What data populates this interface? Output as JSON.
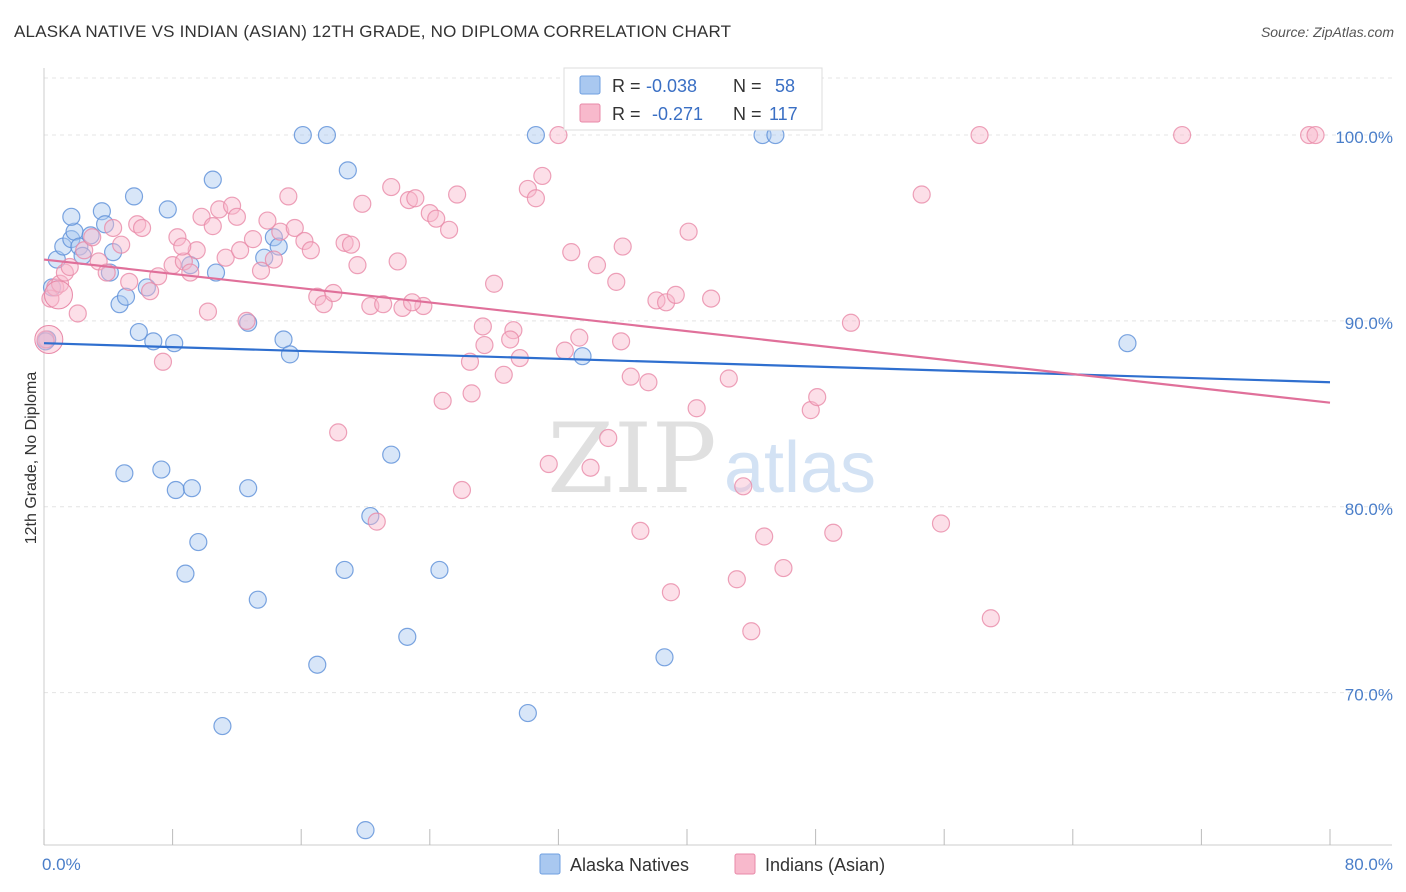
{
  "title": "ALASKA NATIVE VS INDIAN (ASIAN) 12TH GRADE, NO DIPLOMA CORRELATION CHART",
  "source": "Source: ZipAtlas.com",
  "watermark": {
    "zip": "ZIP",
    "atlas": "atlas"
  },
  "legend": {
    "rows": [
      {
        "r_label": "R =",
        "r_value": "-0.038",
        "n_label": "N =",
        "n_value": "58",
        "color": "#a9c8f0",
        "stroke": "#6f9fe0"
      },
      {
        "r_label": "R =",
        "r_value": "-0.271",
        "n_label": "N =",
        "n_value": "117",
        "color": "#f8b9cc",
        "stroke": "#e889a8"
      }
    ]
  },
  "bottom_legend": [
    "Alaska Natives",
    "Indians (Asian)"
  ],
  "chart_data": {
    "type": "scatter",
    "ylabel": "12th Grade, No Diploma",
    "xlabel": "",
    "xlim": [
      0,
      80
    ],
    "ylim": [
      61.8,
      103.5
    ],
    "x_tick_labels": [
      {
        "value": 0,
        "label": "0.0%"
      },
      {
        "value": 80,
        "label": "80.0%"
      }
    ],
    "y_tick_labels": [
      {
        "value": 100,
        "label": "100.0%"
      },
      {
        "value": 90,
        "label": "90.0%"
      },
      {
        "value": 80,
        "label": "80.0%"
      },
      {
        "value": 70,
        "label": "70.0%"
      }
    ],
    "grid": true,
    "series": [
      {
        "name": "Alaska Natives",
        "color": "#a9c8f0",
        "stroke": "#5b8fd8",
        "line_color": "#2f6fcf",
        "trend": {
          "x": [
            0,
            80
          ],
          "y": [
            88.8,
            86.7
          ]
        },
        "points": [
          [
            0.2,
            89.0
          ],
          [
            0.5,
            91.8
          ],
          [
            0.8,
            93.3
          ],
          [
            1.2,
            94.0
          ],
          [
            1.7,
            94.4
          ],
          [
            1.9,
            94.8
          ],
          [
            2.2,
            94.0
          ],
          [
            2.4,
            93.5
          ],
          [
            1.7,
            95.6
          ],
          [
            3.6,
            95.9
          ],
          [
            3.8,
            95.2
          ],
          [
            4.1,
            92.6
          ],
          [
            4.7,
            90.9
          ],
          [
            5.1,
            91.3
          ],
          [
            5.6,
            96.7
          ],
          [
            5.9,
            89.4
          ],
          [
            6.4,
            91.8
          ],
          [
            6.8,
            88.9
          ],
          [
            7.7,
            96.0
          ],
          [
            8.1,
            88.8
          ],
          [
            9.1,
            93.0
          ],
          [
            10.5,
            97.6
          ],
          [
            10.7,
            92.6
          ],
          [
            12.7,
            89.9
          ],
          [
            13.7,
            93.4
          ],
          [
            14.3,
            94.5
          ],
          [
            14.6,
            94.0
          ],
          [
            14.9,
            89.0
          ],
          [
            15.3,
            88.2
          ],
          [
            16.1,
            100.0
          ],
          [
            17.6,
            100.0
          ],
          [
            18.9,
            98.1
          ],
          [
            21.6,
            82.8
          ],
          [
            5.0,
            81.8
          ],
          [
            7.3,
            82.0
          ],
          [
            8.2,
            80.9
          ],
          [
            9.2,
            81.0
          ],
          [
            12.7,
            81.0
          ],
          [
            9.6,
            78.1
          ],
          [
            8.8,
            76.4
          ],
          [
            13.3,
            75.0
          ],
          [
            18.7,
            76.6
          ],
          [
            22.6,
            73.0
          ],
          [
            17.0,
            71.5
          ],
          [
            11.1,
            68.2
          ],
          [
            20.3,
            79.5
          ],
          [
            24.6,
            76.6
          ],
          [
            30.1,
            68.9
          ],
          [
            38.6,
            71.9
          ],
          [
            33.5,
            88.1
          ],
          [
            30.6,
            100.0
          ],
          [
            44.7,
            100.0
          ],
          [
            45.5,
            100.0
          ],
          [
            67.4,
            88.8
          ],
          [
            20.0,
            62.6
          ],
          [
            0.1,
            88.9
          ],
          [
            2.9,
            94.6
          ],
          [
            4.3,
            93.7
          ]
        ]
      },
      {
        "name": "Indians (Asian)",
        "color": "#f8b9cc",
        "stroke": "#e889a8",
        "line_color": "#e0709a",
        "trend": {
          "x": [
            0,
            80
          ],
          "y": [
            93.3,
            85.6
          ]
        },
        "points": [
          [
            0.1,
            89.0
          ],
          [
            0.4,
            91.2
          ],
          [
            0.7,
            91.8
          ],
          [
            1.0,
            92.0
          ],
          [
            1.3,
            92.6
          ],
          [
            1.6,
            92.9
          ],
          [
            2.1,
            90.4
          ],
          [
            2.5,
            93.8
          ],
          [
            3.0,
            94.5
          ],
          [
            3.4,
            93.2
          ],
          [
            3.9,
            92.6
          ],
          [
            4.3,
            95.0
          ],
          [
            4.8,
            94.1
          ],
          [
            5.3,
            92.1
          ],
          [
            5.8,
            95.2
          ],
          [
            6.1,
            95.0
          ],
          [
            6.6,
            91.6
          ],
          [
            7.1,
            92.4
          ],
          [
            7.4,
            87.8
          ],
          [
            8.0,
            93.0
          ],
          [
            8.3,
            94.5
          ],
          [
            8.7,
            93.2
          ],
          [
            9.1,
            92.6
          ],
          [
            9.5,
            93.8
          ],
          [
            9.8,
            95.6
          ],
          [
            10.2,
            90.5
          ],
          [
            10.5,
            95.1
          ],
          [
            10.9,
            96.0
          ],
          [
            11.3,
            93.4
          ],
          [
            11.7,
            96.2
          ],
          [
            12.2,
            93.8
          ],
          [
            12.6,
            90.0
          ],
          [
            13.0,
            94.4
          ],
          [
            13.5,
            92.7
          ],
          [
            13.9,
            95.4
          ],
          [
            14.3,
            93.3
          ],
          [
            14.7,
            94.8
          ],
          [
            15.2,
            96.7
          ],
          [
            15.6,
            95.0
          ],
          [
            16.2,
            94.3
          ],
          [
            16.6,
            93.8
          ],
          [
            17.0,
            91.3
          ],
          [
            17.4,
            90.9
          ],
          [
            18.0,
            91.5
          ],
          [
            18.3,
            84.0
          ],
          [
            18.7,
            94.2
          ],
          [
            19.1,
            94.1
          ],
          [
            19.5,
            93.0
          ],
          [
            19.8,
            96.3
          ],
          [
            20.3,
            90.8
          ],
          [
            20.7,
            79.2
          ],
          [
            21.1,
            90.9
          ],
          [
            21.6,
            97.2
          ],
          [
            22.0,
            93.2
          ],
          [
            22.3,
            90.7
          ],
          [
            22.7,
            96.5
          ],
          [
            23.1,
            96.6
          ],
          [
            23.6,
            90.8
          ],
          [
            24.0,
            95.8
          ],
          [
            24.4,
            95.5
          ],
          [
            24.8,
            85.7
          ],
          [
            25.2,
            94.9
          ],
          [
            25.7,
            96.8
          ],
          [
            26.0,
            80.9
          ],
          [
            26.6,
            86.1
          ],
          [
            27.3,
            89.7
          ],
          [
            28.0,
            92.0
          ],
          [
            28.6,
            87.1
          ],
          [
            29.2,
            89.5
          ],
          [
            29.6,
            88.0
          ],
          [
            30.1,
            97.1
          ],
          [
            30.6,
            96.6
          ],
          [
            31.0,
            97.8
          ],
          [
            31.4,
            82.3
          ],
          [
            32.0,
            100.0
          ],
          [
            32.4,
            88.4
          ],
          [
            32.8,
            93.7
          ],
          [
            33.3,
            89.1
          ],
          [
            34.0,
            82.1
          ],
          [
            34.4,
            93.0
          ],
          [
            35.1,
            83.7
          ],
          [
            35.6,
            92.1
          ],
          [
            36.0,
            94.0
          ],
          [
            36.5,
            87.0
          ],
          [
            37.1,
            78.7
          ],
          [
            37.6,
            86.7
          ],
          [
            38.1,
            91.1
          ],
          [
            38.7,
            91.0
          ],
          [
            39.3,
            91.4
          ],
          [
            40.1,
            94.8
          ],
          [
            40.6,
            85.3
          ],
          [
            41.5,
            91.2
          ],
          [
            42.6,
            86.9
          ],
          [
            43.1,
            76.1
          ],
          [
            43.5,
            81.1
          ],
          [
            44.0,
            73.3
          ],
          [
            44.8,
            78.4
          ],
          [
            46.0,
            76.7
          ],
          [
            47.7,
            85.2
          ],
          [
            48.1,
            85.9
          ],
          [
            49.1,
            78.6
          ],
          [
            50.2,
            89.9
          ],
          [
            54.6,
            96.8
          ],
          [
            55.8,
            79.1
          ],
          [
            58.9,
            74.0
          ],
          [
            58.2,
            100.0
          ],
          [
            78.7,
            100.0
          ],
          [
            79.1,
            100.0
          ],
          [
            70.8,
            100.0
          ],
          [
            39.0,
            75.4
          ],
          [
            27.4,
            88.7
          ],
          [
            22.9,
            91.0
          ],
          [
            12.0,
            95.6
          ],
          [
            8.6,
            94.0
          ],
          [
            29.0,
            89.0
          ],
          [
            35.9,
            88.9
          ],
          [
            26.5,
            87.8
          ]
        ]
      }
    ]
  }
}
